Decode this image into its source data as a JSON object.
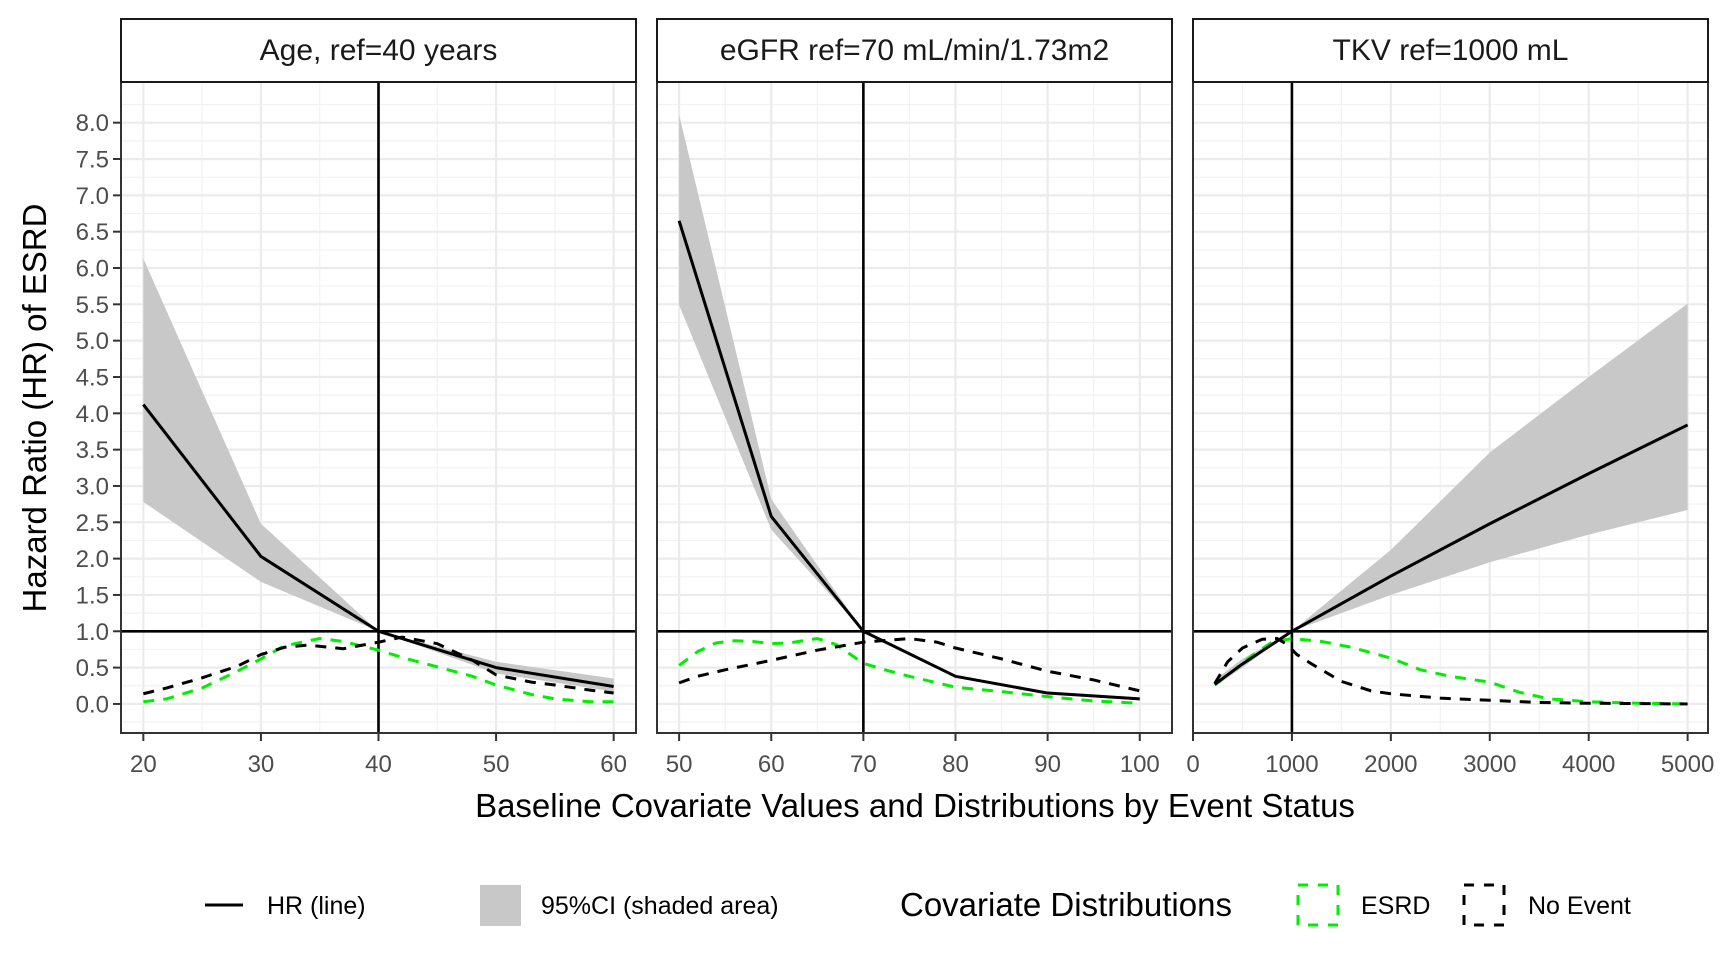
{
  "chart_data": {
    "type": "line",
    "ylabel": "Hazard Ratio (HR) of ESRD",
    "xlabel": "Baseline Covariate Values and Distributions by Event Status",
    "ylim": [
      -0.4,
      8.56
    ],
    "yticks": [
      0.0,
      0.5,
      1.0,
      1.5,
      2.0,
      2.5,
      3.0,
      3.5,
      4.0,
      4.5,
      5.0,
      5.5,
      6.0,
      6.5,
      7.0,
      7.5,
      8.0
    ],
    "ytick_labels": [
      "0.0",
      "0.5",
      "1.0",
      "1.5",
      "2.0",
      "2.5",
      "3.0",
      "3.5",
      "4.0",
      "4.5",
      "5.0",
      "5.5",
      "6.0",
      "6.5",
      "7.0",
      "7.5",
      "8.0"
    ],
    "reference_hline": 1.0,
    "grid": true,
    "colors": {
      "hr": "#000000",
      "ci": "#c8c8c8",
      "esrd": "#00ee00",
      "no_event": "#000000",
      "grid_major": "#ebebeb",
      "grid_minor": "#f2f2f2",
      "border": "#333333"
    },
    "panels": [
      {
        "title": "Age, ref=40 years",
        "ref_x": 40,
        "xlim": [
          18.1,
          61.9
        ],
        "xticks": [
          20,
          30,
          40,
          50,
          60
        ],
        "xtick_labels": [
          "20",
          "30",
          "40",
          "50",
          "60"
        ],
        "xminor": [
          25,
          35,
          45,
          55
        ],
        "hr": {
          "x": [
            20,
            30,
            40,
            50,
            60
          ],
          "y": [
            4.12,
            2.03,
            1.0,
            0.5,
            0.24
          ]
        },
        "ci": {
          "x": [
            20,
            30,
            40,
            50,
            60
          ],
          "lower": [
            2.78,
            1.68,
            1.0,
            0.42,
            0.17
          ],
          "upper": [
            6.13,
            2.48,
            1.0,
            0.58,
            0.35
          ]
        },
        "esrd": {
          "x": [
            20,
            22,
            25,
            28,
            30,
            32,
            35,
            37,
            40,
            42,
            45,
            48,
            50,
            53,
            55,
            58,
            60
          ],
          "y": [
            0.03,
            0.07,
            0.22,
            0.45,
            0.62,
            0.8,
            0.9,
            0.86,
            0.74,
            0.64,
            0.51,
            0.38,
            0.26,
            0.13,
            0.07,
            0.03,
            0.03
          ]
        },
        "no_event": {
          "x": [
            20,
            22,
            25,
            28,
            30,
            32,
            34,
            37,
            40,
            42,
            45,
            48,
            50,
            53,
            55,
            58,
            60
          ],
          "y": [
            0.14,
            0.22,
            0.36,
            0.52,
            0.68,
            0.78,
            0.81,
            0.76,
            0.85,
            0.92,
            0.83,
            0.6,
            0.4,
            0.3,
            0.26,
            0.19,
            0.15
          ]
        }
      },
      {
        "title": "eGFR ref=70 mL/min/1.73m2",
        "ref_x": 70,
        "xlim": [
          47.6,
          103.5
        ],
        "xticks": [
          50,
          60,
          70,
          80,
          90,
          100
        ],
        "xtick_labels": [
          "50",
          "60",
          "70",
          "80",
          "90",
          "100"
        ],
        "xminor": [
          55,
          65,
          75,
          85,
          95
        ],
        "hr": {
          "x": [
            50,
            60,
            70,
            80,
            90,
            100
          ],
          "y": [
            6.65,
            2.58,
            1.0,
            0.38,
            0.15,
            0.07
          ]
        },
        "ci": {
          "x": [
            50,
            60,
            70,
            80,
            90,
            100
          ],
          "lower": [
            5.49,
            2.4,
            1.0,
            0.36,
            0.13,
            0.05
          ],
          "upper": [
            8.11,
            2.82,
            1.0,
            0.4,
            0.17,
            0.09
          ]
        },
        "esrd": {
          "x": [
            50,
            52,
            54,
            56,
            58,
            60,
            62,
            65,
            67,
            70,
            72,
            75,
            80,
            85,
            90,
            95,
            100
          ],
          "y": [
            0.53,
            0.72,
            0.84,
            0.87,
            0.86,
            0.83,
            0.84,
            0.9,
            0.82,
            0.56,
            0.48,
            0.38,
            0.23,
            0.17,
            0.1,
            0.04,
            0.01
          ]
        },
        "no_event": {
          "x": [
            50,
            52,
            55,
            60,
            65,
            70,
            73,
            75,
            78,
            80,
            85,
            90,
            95,
            100
          ],
          "y": [
            0.29,
            0.38,
            0.47,
            0.6,
            0.74,
            0.85,
            0.88,
            0.9,
            0.85,
            0.77,
            0.62,
            0.45,
            0.33,
            0.18
          ]
        }
      },
      {
        "title": "TKV ref=1000 mL",
        "ref_x": 1000,
        "xlim": [
          0,
          5206
        ],
        "xticks": [
          0,
          1000,
          2000,
          3000,
          4000,
          5000
        ],
        "xtick_labels": [
          "0",
          "1000",
          "2000",
          "3000",
          "4000",
          "5000"
        ],
        "xminor": [
          500,
          1500,
          2500,
          3500,
          4500
        ],
        "hr": {
          "x": [
            220,
            500,
            1000,
            2000,
            3000,
            4000,
            5000
          ],
          "y": [
            0.27,
            0.55,
            1.0,
            1.76,
            2.48,
            3.17,
            3.84
          ]
        },
        "ci": {
          "x": [
            220,
            500,
            1000,
            2000,
            3000,
            4000,
            5000
          ],
          "lower": [
            0.24,
            0.5,
            1.0,
            1.5,
            1.95,
            2.33,
            2.67
          ],
          "upper": [
            0.33,
            0.62,
            1.0,
            2.12,
            3.46,
            4.5,
            5.51
          ]
        },
        "esrd": {
          "x": [
            220,
            400,
            600,
            800,
            1000,
            1300,
            1600,
            2000,
            2300,
            2600,
            3000,
            3300,
            3600,
            4000,
            4500,
            5000
          ],
          "y": [
            0.26,
            0.45,
            0.67,
            0.85,
            0.9,
            0.86,
            0.78,
            0.63,
            0.47,
            0.38,
            0.3,
            0.16,
            0.07,
            0.03,
            0.01,
            0.0
          ]
        },
        "no_event": {
          "x": [
            220,
            350,
            500,
            700,
            850,
            950,
            1050,
            1200,
            1500,
            1800,
            2000,
            2500,
            3000,
            3500,
            4000,
            5000
          ],
          "y": [
            0.28,
            0.58,
            0.77,
            0.89,
            0.9,
            0.82,
            0.68,
            0.55,
            0.31,
            0.18,
            0.14,
            0.08,
            0.05,
            0.02,
            0.01,
            0.0
          ]
        }
      }
    ],
    "legend": {
      "position": "bottom",
      "hr_label": "HR (line)",
      "ci_label": "95%CI (shaded area)",
      "dist_title": "Covariate Distributions",
      "esrd_label": "ESRD",
      "no_event_label": "No Event"
    }
  }
}
